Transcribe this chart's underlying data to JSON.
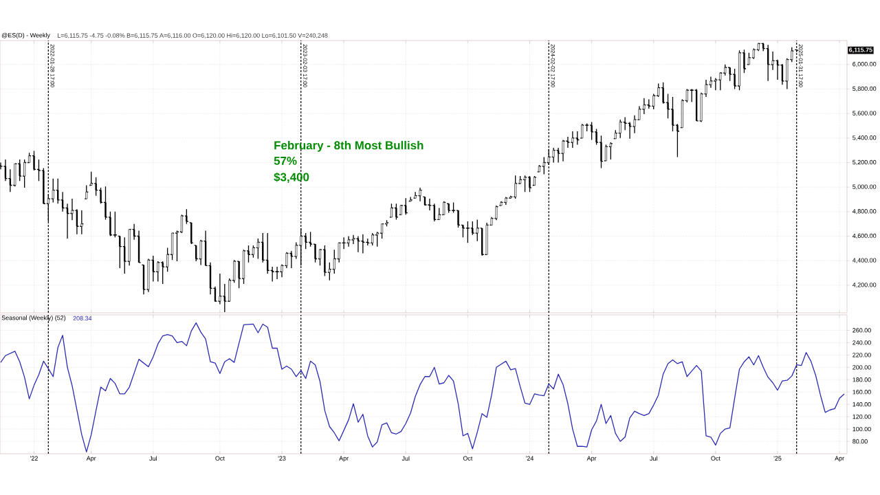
{
  "chart_data": [
    {
      "type": "candlestick",
      "title": "@ES(D) - Weekly",
      "subtitle": "L=6,115.75 -4.75 -0.08% B=6,115.75 A=6,116.00 O=6,120.00 Hi=6,120.00 Lo=6,101.50 V=240,248",
      "color": "#000000",
      "x": [
        "2021-11-19",
        "2021-11-26",
        "2021-12-03",
        "2021-12-10",
        "2021-12-17",
        "2021-12-24",
        "2021-12-31",
        "2022-01-07",
        "2022-01-14",
        "2022-01-21",
        "2022-01-28",
        "2022-02-04",
        "2022-02-11",
        "2022-02-18",
        "2022-02-25",
        "2022-03-04",
        "2022-03-11",
        "2022-03-18",
        "2022-03-25",
        "2022-04-01",
        "2022-04-08",
        "2022-04-15",
        "2022-04-22",
        "2022-04-29",
        "2022-05-06",
        "2022-05-13",
        "2022-05-20",
        "2022-05-27",
        "2022-06-03",
        "2022-06-10",
        "2022-06-17",
        "2022-06-24",
        "2022-07-01",
        "2022-07-08",
        "2022-07-15",
        "2022-07-22",
        "2022-07-29",
        "2022-08-05",
        "2022-08-12",
        "2022-08-19",
        "2022-08-26",
        "2022-09-02",
        "2022-09-09",
        "2022-09-16",
        "2022-09-23",
        "2022-09-30",
        "2022-10-07",
        "2022-10-14",
        "2022-10-21",
        "2022-10-28",
        "2022-11-04",
        "2022-11-11",
        "2022-11-18",
        "2022-11-25",
        "2022-12-02",
        "2022-12-09",
        "2022-12-16",
        "2022-12-23",
        "2022-12-30",
        "2023-01-06",
        "2023-01-13",
        "2023-01-20",
        "2023-01-27",
        "2023-02-03",
        "2023-02-10",
        "2023-02-17",
        "2023-02-24",
        "2023-03-03",
        "2023-03-10",
        "2023-03-17",
        "2023-03-24",
        "2023-03-31",
        "2023-04-07",
        "2023-04-14",
        "2023-04-21",
        "2023-04-28",
        "2023-05-05",
        "2023-05-12",
        "2023-05-19",
        "2023-05-26",
        "2023-06-02",
        "2023-06-09",
        "2023-06-16",
        "2023-06-23",
        "2023-06-30",
        "2023-07-07",
        "2023-07-14",
        "2023-07-21",
        "2023-07-28",
        "2023-08-04",
        "2023-08-11",
        "2023-08-18",
        "2023-08-25",
        "2023-09-01",
        "2023-09-08",
        "2023-09-15",
        "2023-09-22",
        "2023-09-29",
        "2023-10-06",
        "2023-10-13",
        "2023-10-20",
        "2023-10-27",
        "2023-11-03",
        "2023-11-10",
        "2023-11-17",
        "2023-11-24",
        "2023-12-01",
        "2023-12-08",
        "2023-12-15",
        "2023-12-22",
        "2023-12-29",
        "2024-01-05",
        "2024-01-12",
        "2024-01-19",
        "2024-01-26",
        "2024-02-02",
        "2024-02-09",
        "2024-02-16",
        "2024-02-23",
        "2024-03-01",
        "2024-03-08",
        "2024-03-15",
        "2024-03-22",
        "2024-03-29",
        "2024-04-05",
        "2024-04-12",
        "2024-04-19",
        "2024-04-26",
        "2024-05-03",
        "2024-05-10",
        "2024-05-17",
        "2024-05-24",
        "2024-05-31",
        "2024-06-07",
        "2024-06-14",
        "2024-06-21",
        "2024-06-28",
        "2024-07-05",
        "2024-07-12",
        "2024-07-19",
        "2024-07-26",
        "2024-08-02",
        "2024-08-09",
        "2024-08-16",
        "2024-08-23",
        "2024-08-30",
        "2024-09-06",
        "2024-09-13",
        "2024-09-20",
        "2024-09-27",
        "2024-10-04",
        "2024-10-11",
        "2024-10-18",
        "2024-10-25",
        "2024-11-01",
        "2024-11-08",
        "2024-11-15",
        "2024-11-22",
        "2024-11-29",
        "2024-12-06",
        "2024-12-13",
        "2024-12-20",
        "2024-12-27",
        "2025-01-03",
        "2025-01-10",
        "2025-01-17",
        "2025-01-24",
        "2025-01-31"
      ],
      "ohlc": [
        [
          5175,
          5200,
          5145,
          5170
        ],
        [
          5170,
          5225,
          5050,
          5070
        ],
        [
          5070,
          5145,
          4960,
          5015
        ],
        [
          5015,
          5190,
          5005,
          5190
        ],
        [
          5190,
          5225,
          5050,
          5090
        ],
        [
          5090,
          5225,
          4995,
          5200
        ],
        [
          5200,
          5280,
          5200,
          5255
        ],
        [
          5255,
          5295,
          5135,
          5145
        ],
        [
          5145,
          5225,
          5050,
          5135
        ],
        [
          5135,
          5155,
          4865,
          4865
        ],
        [
          4865,
          4940,
          4720,
          4905
        ],
        [
          4905,
          5070,
          4875,
          4975
        ],
        [
          4975,
          5070,
          4865,
          4895
        ],
        [
          4895,
          4960,
          4800,
          4830
        ],
        [
          4830,
          4865,
          4580,
          4785
        ],
        [
          4785,
          4905,
          4730,
          4810
        ],
        [
          4810,
          4820,
          4615,
          4680
        ],
        [
          4680,
          4810,
          4615,
          4700
        ],
        [
          4905,
          5015,
          4905,
          4960
        ],
        [
          5015,
          5125,
          5015,
          5030
        ],
        [
          5030,
          5080,
          4930,
          4975
        ],
        [
          4975,
          4995,
          4865,
          4875
        ],
        [
          4875,
          5005,
          4735,
          4755
        ],
        [
          4755,
          4800,
          4600,
          4610
        ],
        [
          4610,
          4800,
          4590,
          4610
        ],
        [
          4600,
          4600,
          4340,
          4515
        ],
        [
          4515,
          4590,
          4295,
          4395
        ],
        [
          4395,
          4655,
          4360,
          4655
        ],
        [
          4655,
          4700,
          4570,
          4600
        ],
        [
          4600,
          4645,
          4385,
          4385
        ],
        [
          4365,
          4365,
          4125,
          4165
        ],
        [
          4165,
          4415,
          4145,
          4405
        ],
        [
          4405,
          4440,
          4230,
          4310
        ],
        [
          4310,
          4395,
          4230,
          4385
        ],
        [
          4385,
          4395,
          4210,
          4350
        ],
        [
          4350,
          4505,
          4310,
          4450
        ],
        [
          4450,
          4625,
          4405,
          4625
        ],
        [
          4625,
          4645,
          4395,
          4635
        ],
        [
          4635,
          4775,
          4625,
          4765
        ],
        [
          4765,
          4820,
          4700,
          4720
        ],
        [
          4710,
          4710,
          4535,
          4545
        ],
        [
          4525,
          4525,
          4395,
          4415
        ],
        [
          4415,
          4570,
          4365,
          4560
        ],
        [
          4560,
          4645,
          4360,
          4360
        ],
        [
          4360,
          4385,
          4125,
          4175
        ],
        [
          4175,
          4190,
          4065,
          4070
        ],
        [
          4070,
          4295,
          4045,
          4110
        ],
        [
          4110,
          4210,
          3980,
          4070
        ],
        [
          4070,
          4255,
          4065,
          4240
        ],
        [
          4240,
          4405,
          4220,
          4395
        ],
        [
          4395,
          4395,
          4175,
          4255
        ],
        [
          4255,
          4490,
          4210,
          4480
        ],
        [
          4480,
          4525,
          4385,
          4450
        ],
        [
          4450,
          4525,
          4425,
          4505
        ],
        [
          4505,
          4580,
          4415,
          4550
        ],
        [
          4550,
          4625,
          4385,
          4405
        ],
        [
          4405,
          4625,
          4295,
          4320
        ],
        [
          4320,
          4350,
          4230,
          4310
        ],
        [
          4310,
          4350,
          4250,
          4310
        ],
        [
          4310,
          4370,
          4265,
          4360
        ],
        [
          4360,
          4470,
          4340,
          4460
        ],
        [
          4460,
          4480,
          4340,
          4435
        ],
        [
          4435,
          4550,
          4415,
          4525
        ],
        [
          4525,
          4665,
          4360,
          4600
        ],
        [
          4600,
          4625,
          4495,
          4550
        ],
        [
          4550,
          4635,
          4515,
          4535
        ],
        [
          4535,
          4535,
          4385,
          4415
        ],
        [
          4415,
          4495,
          4360,
          4490
        ],
        [
          4490,
          4525,
          4275,
          4305
        ],
        [
          4305,
          4385,
          4240,
          4330
        ],
        [
          4330,
          4490,
          4295,
          4415
        ],
        [
          4415,
          4550,
          4385,
          4545
        ],
        [
          4545,
          4590,
          4495,
          4545
        ],
        [
          4545,
          4600,
          4515,
          4570
        ],
        [
          4570,
          4610,
          4535,
          4580
        ],
        [
          4580,
          4600,
          4470,
          4560
        ],
        [
          4560,
          4615,
          4460,
          4550
        ],
        [
          4550,
          4580,
          4525,
          4545
        ],
        [
          4545,
          4625,
          4525,
          4610
        ],
        [
          4610,
          4635,
          4515,
          4625
        ],
        [
          4625,
          4700,
          4580,
          4700
        ],
        [
          4700,
          4730,
          4680,
          4710
        ],
        [
          4755,
          4865,
          4755,
          4830
        ],
        [
          4830,
          4865,
          4735,
          4755
        ],
        [
          4775,
          4855,
          4775,
          4850
        ],
        [
          4850,
          4910,
          4775,
          4790
        ],
        [
          4885,
          4920,
          4885,
          4895
        ],
        [
          4910,
          4960,
          4910,
          4930
        ],
        [
          4930,
          4995,
          4885,
          4975
        ],
        [
          4920,
          4920,
          4850,
          4855
        ],
        [
          4855,
          4905,
          4810,
          4850
        ],
        [
          4850,
          4865,
          4720,
          4735
        ],
        [
          4735,
          4830,
          4735,
          4775
        ],
        [
          4775,
          4885,
          4775,
          4875
        ],
        [
          4865,
          4865,
          4790,
          4810
        ],
        [
          4810,
          4875,
          4790,
          4810
        ],
        [
          4810,
          4810,
          4670,
          4690
        ],
        [
          4690,
          4690,
          4590,
          4665
        ],
        [
          4665,
          4720,
          4545,
          4665
        ],
        [
          4665,
          4720,
          4610,
          4625
        ],
        [
          4625,
          4735,
          4560,
          4665
        ],
        [
          4665,
          4665,
          4440,
          4450
        ],
        [
          4450,
          4710,
          4450,
          4690
        ],
        [
          4690,
          4755,
          4690,
          4745
        ],
        [
          4745,
          4850,
          4730,
          4840
        ],
        [
          4850,
          4885,
          4850,
          4875
        ],
        [
          4875,
          4920,
          4855,
          4910
        ],
        [
          4910,
          4930,
          4905,
          4920
        ],
        [
          4920,
          5095,
          4905,
          5030
        ],
        [
          5030,
          5090,
          5025,
          5060
        ],
        [
          5060,
          5095,
          4960,
          5080
        ],
        [
          5080,
          5090,
          4960,
          4995
        ],
        [
          5015,
          5090,
          5015,
          5080
        ],
        [
          5125,
          5180,
          5125,
          5170
        ],
        [
          5170,
          5245,
          5105,
          5200
        ],
        [
          5200,
          5310,
          5180,
          5245
        ],
        [
          5245,
          5320,
          5200,
          5300
        ],
        [
          5300,
          5320,
          5200,
          5275
        ],
        [
          5275,
          5385,
          5210,
          5375
        ],
        [
          5375,
          5410,
          5320,
          5365
        ],
        [
          5365,
          5455,
          5320,
          5400
        ],
        [
          5400,
          5455,
          5345,
          5385
        ],
        [
          5400,
          5515,
          5400,
          5505
        ],
        [
          5505,
          5520,
          5455,
          5505
        ],
        [
          5505,
          5530,
          5385,
          5450
        ],
        [
          5450,
          5475,
          5345,
          5365
        ],
        [
          5365,
          5420,
          5155,
          5210
        ],
        [
          5215,
          5345,
          5215,
          5330
        ],
        [
          5330,
          5365,
          5225,
          5355
        ],
        [
          5395,
          5465,
          5395,
          5440
        ],
        [
          5440,
          5550,
          5400,
          5530
        ],
        [
          5530,
          5570,
          5465,
          5520
        ],
        [
          5520,
          5530,
          5395,
          5495
        ],
        [
          5495,
          5585,
          5440,
          5550
        ],
        [
          5550,
          5660,
          5550,
          5635
        ],
        [
          5635,
          5725,
          5595,
          5670
        ],
        [
          5670,
          5715,
          5640,
          5660
        ],
        [
          5660,
          5760,
          5635,
          5745
        ],
        [
          5745,
          5845,
          5735,
          5810
        ],
        [
          5810,
          5855,
          5680,
          5690
        ],
        [
          5690,
          5760,
          5560,
          5635
        ],
        [
          5635,
          5735,
          5455,
          5505
        ],
        [
          5505,
          5515,
          5245,
          5455
        ],
        [
          5485,
          5715,
          5485,
          5705
        ],
        [
          5705,
          5800,
          5690,
          5790
        ],
        [
          5790,
          5800,
          5695,
          5790
        ],
        [
          5790,
          5800,
          5540,
          5540
        ],
        [
          5540,
          5770,
          5530,
          5760
        ],
        [
          5760,
          5875,
          5735,
          5835
        ],
        [
          5835,
          5900,
          5810,
          5865
        ],
        [
          5865,
          5890,
          5790,
          5875
        ],
        [
          5875,
          5935,
          5790,
          5930
        ],
        [
          5930,
          6000,
          5910,
          5975
        ],
        [
          5975,
          5975,
          5865,
          5920
        ],
        [
          5920,
          5965,
          5800,
          5825
        ],
        [
          5825,
          6115,
          5790,
          6095
        ],
        [
          6095,
          6120,
          5930,
          5965
        ],
        [
          6000,
          6095,
          6000,
          6055
        ],
        [
          6055,
          6130,
          6045,
          6120
        ],
        [
          6120,
          6175,
          6110,
          6170
        ],
        [
          6170,
          6175,
          6110,
          6130
        ],
        [
          6130,
          6160,
          5865,
          6000
        ],
        [
          6000,
          6105,
          5955,
          6030
        ],
        [
          6030,
          6040,
          5875,
          5995
        ],
        [
          5995,
          6005,
          5835,
          5865
        ],
        [
          5865,
          6050,
          5800,
          6040
        ],
        [
          6040,
          6140,
          6020,
          6110
        ],
        [
          6120,
          6120,
          6101.5,
          6115.75
        ]
      ],
      "xlim": [
        "2021-11-18",
        "2025-04-15"
      ],
      "ylim": [
        3975,
        6195
      ],
      "xticks": [
        {
          "value": "2022-01-07",
          "label": null
        },
        {
          "value": "2022-04-01",
          "label": null
        },
        {
          "value": "2022-07-01",
          "label": null
        },
        {
          "value": "2022-10-07",
          "label": null
        },
        {
          "value": "2023-01-06",
          "label": null
        },
        {
          "value": "2023-04-07",
          "label": null
        },
        {
          "value": "2023-07-07",
          "label": null
        },
        {
          "value": "2023-10-06",
          "label": null
        },
        {
          "value": "2024-01-05",
          "label": null
        },
        {
          "value": "2024-04-05",
          "label": null
        },
        {
          "value": "2024-07-05",
          "label": null
        },
        {
          "value": "2024-10-04",
          "label": null
        },
        {
          "value": "2025-01-03",
          "label": null
        },
        {
          "value": "2025-04-04",
          "label": null
        }
      ],
      "yticks": [
        {
          "value": 4200,
          "label": "4,200.00"
        },
        {
          "value": 4400,
          "label": "4,400.00"
        },
        {
          "value": 4600,
          "label": "4,600.00"
        },
        {
          "value": 4800,
          "label": "4,800.00"
        },
        {
          "value": 5000,
          "label": "5,000.00"
        },
        {
          "value": 5200,
          "label": "5,200.00"
        },
        {
          "value": 5400,
          "label": "5,400.00"
        },
        {
          "value": 5600,
          "label": "5,600.00"
        },
        {
          "value": 5800,
          "label": "5,800.00"
        },
        {
          "value": 6000,
          "label": "6,000.00"
        }
      ],
      "grid": true,
      "tick_labels": "y",
      "ref_lines": [
        {
          "axis": "x",
          "value": "2022-01-28",
          "label": "2022-01-28 17:00",
          "color": "#000000",
          "line_style": "dashed"
        },
        {
          "axis": "x",
          "value": "2023-02-03",
          "label": "2023-02-03 17:00",
          "color": "#000000",
          "line_style": "dashed"
        },
        {
          "axis": "x",
          "value": "2024-02-02",
          "label": "2024-02-02 17:00",
          "color": "#000000",
          "line_style": "dashed"
        },
        {
          "axis": "x",
          "value": "2025-01-31",
          "label": "2025-01-31 17:00",
          "color": "#000000",
          "line_style": "dashed"
        }
      ],
      "annotations": [
        "February - 8th Most Bullish",
        "57%",
        "$3,400",
        "6,115.75"
      ]
    },
    {
      "type": "line",
      "title": "Seasonal (Weekly) (52)",
      "subtitle": "208.34",
      "x": [
        "2021-11-19",
        "2021-11-26",
        "2021-12-10",
        "2021-12-17",
        "2021-12-24",
        "2021-12-31",
        "2022-01-07",
        "2022-01-14",
        "2022-01-21",
        "2022-01-28",
        "2022-02-04",
        "2022-02-11",
        "2022-02-18",
        "2022-02-25",
        "2022-03-04",
        "2022-03-18",
        "2022-03-25",
        "2022-04-01",
        "2022-04-08",
        "2022-04-15",
        "2022-04-22",
        "2022-04-29",
        "2022-05-06",
        "2022-05-13",
        "2022-05-20",
        "2022-05-27",
        "2022-06-10",
        "2022-06-24",
        "2022-07-01",
        "2022-07-08",
        "2022-07-15",
        "2022-07-22",
        "2022-07-29",
        "2022-08-05",
        "2022-08-12",
        "2022-08-19",
        "2022-08-26",
        "2022-09-02",
        "2022-09-09",
        "2022-09-16",
        "2022-09-23",
        "2022-09-30",
        "2022-10-07",
        "2022-10-14",
        "2022-10-21",
        "2022-10-28",
        "2022-11-04",
        "2022-11-11",
        "2022-11-25",
        "2022-12-02",
        "2022-12-09",
        "2022-12-16",
        "2022-12-23",
        "2022-12-30",
        "2023-01-06",
        "2023-01-13",
        "2023-01-20",
        "2023-01-27",
        "2023-02-03",
        "2023-02-10",
        "2023-02-17",
        "2023-02-24",
        "2023-03-03",
        "2023-03-10",
        "2023-03-17",
        "2023-03-24",
        "2023-03-31",
        "2023-04-07",
        "2023-04-14",
        "2023-04-21",
        "2023-04-28",
        "2023-05-05",
        "2023-05-12",
        "2023-05-19",
        "2023-05-26",
        "2023-06-02",
        "2023-06-09",
        "2023-06-16",
        "2023-06-23",
        "2023-06-30",
        "2023-07-07",
        "2023-07-14",
        "2023-07-21",
        "2023-07-28",
        "2023-08-04",
        "2023-08-11",
        "2023-08-18",
        "2023-08-25",
        "2023-09-01",
        "2023-09-08",
        "2023-09-15",
        "2023-09-22",
        "2023-09-29",
        "2023-10-06",
        "2023-10-13",
        "2023-10-20",
        "2023-10-27",
        "2023-11-03",
        "2023-11-10",
        "2023-11-17",
        "2023-11-24",
        "2023-12-01",
        "2023-12-08",
        "2023-12-15",
        "2023-12-22",
        "2023-12-29",
        "2024-01-05",
        "2024-01-12",
        "2024-01-19",
        "2024-01-26",
        "2024-02-02",
        "2024-02-09",
        "2024-02-16",
        "2024-02-23",
        "2024-03-01",
        "2024-03-08",
        "2024-03-15",
        "2024-03-22",
        "2024-03-29",
        "2024-04-05",
        "2024-04-12",
        "2024-04-19",
        "2024-04-26",
        "2024-05-03",
        "2024-05-10",
        "2024-05-17",
        "2024-05-24",
        "2024-05-31",
        "2024-06-07",
        "2024-06-14",
        "2024-06-21",
        "2024-06-28",
        "2024-07-05",
        "2024-07-12",
        "2024-07-19",
        "2024-07-26",
        "2024-08-02",
        "2024-08-09",
        "2024-08-16",
        "2024-08-23",
        "2024-08-30",
        "2024-09-06",
        "2024-09-13",
        "2024-09-20",
        "2024-09-27",
        "2024-10-04",
        "2024-10-11",
        "2024-10-18",
        "2024-10-25",
        "2024-11-01",
        "2024-11-08",
        "2024-11-15",
        "2024-11-22",
        "2024-11-29",
        "2024-12-06",
        "2024-12-13",
        "2024-12-20",
        "2024-12-27",
        "2025-01-03",
        "2025-01-10",
        "2025-01-17",
        "2025-01-24",
        "2025-01-31",
        "2025-02-07",
        "2025-02-14",
        "2025-02-21",
        "2025-02-28",
        "2025-03-07",
        "2025-03-14",
        "2025-03-21",
        "2025-03-28",
        "2025-04-04",
        "2025-04-11"
      ],
      "series": [
        {
          "color": "#2a2ab4",
          "values": [
            208,
            219,
            226,
            209,
            184,
            149,
            171,
            188,
            210,
            198,
            185,
            232,
            252,
            200,
            170,
            91,
            63,
            91,
            130,
            168,
            162,
            182,
            174,
            157,
            157,
            168,
            213,
            201,
            217,
            238,
            251,
            253,
            251,
            240,
            242,
            235,
            259,
            272,
            257,
            246,
            209,
            207,
            190,
            209,
            214,
            208,
            239,
            269,
            270,
            256,
            270,
            265,
            231,
            231,
            197,
            202,
            197,
            185,
            195,
            182,
            210,
            204,
            177,
            130,
            104,
            94,
            81,
            98,
            115,
            141,
            111,
            124,
            89,
            71,
            79,
            107,
            110,
            94,
            92,
            96,
            109,
            126,
            153,
            172,
            185,
            185,
            200,
            173,
            175,
            187,
            178,
            141,
            89,
            93,
            68,
            95,
            125,
            119,
            155,
            200,
            205,
            210,
            196,
            198,
            169,
            142,
            140,
            157,
            155,
            154,
            173,
            165,
            189,
            172,
            141,
            100,
            72,
            72,
            71,
            99,
            113,
            140,
            109,
            122,
            93,
            80,
            87,
            118,
            129,
            125,
            122,
            125,
            139,
            155,
            189,
            206,
            212,
            206,
            209,
            185,
            194,
            203,
            194,
            89,
            87,
            74,
            93,
            100,
            102,
            150,
            197,
            209,
            217,
            204,
            219,
            200,
            184,
            175,
            163,
            178,
            179,
            186,
            204,
            203,
            224,
            210,
            187,
            155,
            127,
            131,
            133,
            150,
            157
          ]
        }
      ],
      "xlim": [
        "2021-11-18",
        "2025-04-15"
      ],
      "ylim": [
        60,
        285
      ],
      "xticks": [
        {
          "value": "2022-01-07",
          "label": "'22"
        },
        {
          "value": "2022-04-01",
          "label": "Apr"
        },
        {
          "value": "2022-07-01",
          "label": "Jul"
        },
        {
          "value": "2022-10-07",
          "label": "Oct"
        },
        {
          "value": "2023-01-06",
          "label": "'23"
        },
        {
          "value": "2023-04-07",
          "label": "Apr"
        },
        {
          "value": "2023-07-07",
          "label": "Jul"
        },
        {
          "value": "2023-10-06",
          "label": "Oct"
        },
        {
          "value": "2024-01-05",
          "label": "'24"
        },
        {
          "value": "2024-04-05",
          "label": "Apr"
        },
        {
          "value": "2024-07-05",
          "label": "Jul"
        },
        {
          "value": "2024-10-04",
          "label": "Oct"
        },
        {
          "value": "2025-01-03",
          "label": "'25"
        },
        {
          "value": "2025-04-04",
          "label": "Apr"
        }
      ],
      "yticks": [
        {
          "value": 80,
          "label": "80.00"
        },
        {
          "value": 100,
          "label": "100.00"
        },
        {
          "value": 120,
          "label": "120.00"
        },
        {
          "value": 140,
          "label": "140.00"
        },
        {
          "value": 160,
          "label": "160.00"
        },
        {
          "value": 180,
          "label": "180.00"
        },
        {
          "value": 200,
          "label": "200.00"
        },
        {
          "value": 220,
          "label": "220.00"
        },
        {
          "value": 240,
          "label": "240.00"
        },
        {
          "value": 260,
          "label": "260.00"
        }
      ],
      "grid": true,
      "ref_lines": [
        {
          "axis": "x",
          "value": "2022-01-28",
          "color": "#000000",
          "line_style": "dashed"
        },
        {
          "axis": "x",
          "value": "2023-02-03",
          "color": "#000000",
          "line_style": "dashed"
        },
        {
          "axis": "x",
          "value": "2024-02-02",
          "color": "#000000",
          "line_style": "dashed"
        },
        {
          "axis": "x",
          "value": "2025-01-31",
          "color": "#000000",
          "line_style": "dashed"
        }
      ]
    }
  ]
}
